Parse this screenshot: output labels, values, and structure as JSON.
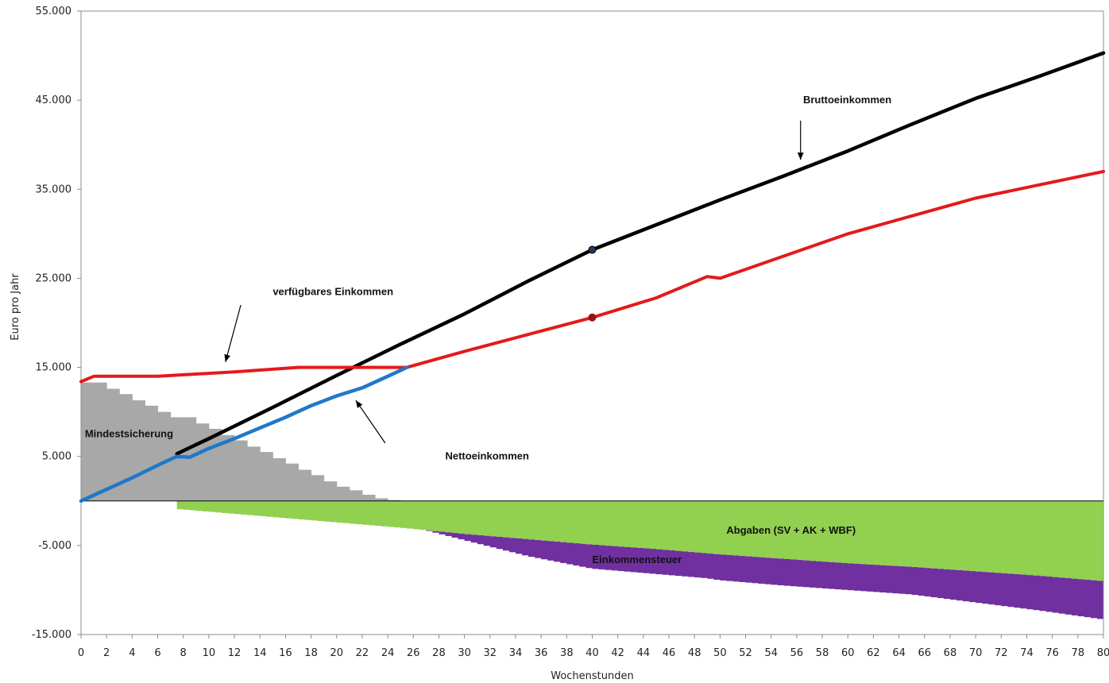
{
  "chart_data": {
    "type": "area",
    "xlabel": "Wochenstunden",
    "ylabel": "Euro pro Jahr",
    "xlim": [
      0,
      80
    ],
    "ylim": [
      -15000,
      55000
    ],
    "x_ticks": [
      0,
      2,
      4,
      6,
      8,
      10,
      12,
      14,
      16,
      18,
      20,
      22,
      24,
      26,
      28,
      30,
      32,
      34,
      36,
      38,
      40,
      42,
      44,
      46,
      48,
      50,
      52,
      54,
      56,
      58,
      60,
      62,
      64,
      66,
      68,
      70,
      72,
      74,
      76,
      78,
      80
    ],
    "y_ticks": [
      -15000,
      -5000,
      5000,
      15000,
      25000,
      35000,
      45000,
      55000
    ],
    "y_tick_labels": [
      "-15.000",
      "-5.000",
      "5.000",
      "15.000",
      "25.000",
      "35.000",
      "45.000",
      "55.000"
    ],
    "grid": false,
    "series": [
      {
        "name": "Bruttoeinkommen",
        "kind": "line",
        "color": "#000000",
        "x": [
          7.5,
          10,
          15,
          20,
          25,
          30,
          35,
          40,
          45,
          50,
          55,
          60,
          65,
          70,
          75,
          80
        ],
        "y": [
          5300,
          7000,
          10500,
          14100,
          17600,
          21000,
          24700,
          28200,
          31000,
          33800,
          36500,
          39300,
          42300,
          45200,
          47700,
          50300
        ]
      },
      {
        "name": "Nettoeinkommen",
        "kind": "line",
        "color": "#1f78c8",
        "x": [
          0,
          2,
          4,
          6,
          7.5,
          8.5,
          10,
          12,
          14,
          16,
          18,
          20,
          22,
          24,
          25.5
        ],
        "y": [
          0,
          1300,
          2600,
          4000,
          5000,
          4900,
          5900,
          7000,
          8200,
          9400,
          10700,
          11800,
          12700,
          14000,
          15000
        ]
      },
      {
        "name": "verfügbares Einkommen",
        "kind": "line",
        "color": "#e31a1c",
        "x": [
          0,
          1,
          6,
          12,
          17,
          20,
          25.5,
          30,
          35,
          40,
          45,
          49,
          50,
          55,
          60,
          65,
          70,
          75,
          80
        ],
        "y": [
          13400,
          14000,
          14000,
          14500,
          15000,
          15000,
          15000,
          16800,
          18700,
          20600,
          22800,
          25200,
          25000,
          27500,
          30000,
          32000,
          34000,
          35500,
          37000
        ]
      },
      {
        "name": "Mindestsicherung",
        "kind": "area",
        "color": "#a8a8a8",
        "x": [
          0,
          1,
          2,
          3,
          4,
          5,
          6,
          7,
          8,
          9,
          10,
          11,
          12,
          13,
          14,
          15,
          16,
          17,
          18,
          19,
          20,
          21,
          22,
          23,
          24,
          25
        ],
        "y": [
          13300,
          13300,
          12600,
          12000,
          11300,
          10700,
          10000,
          9400,
          9400,
          8700,
          8100,
          7400,
          6800,
          6100,
          5500,
          4800,
          4200,
          3500,
          2900,
          2200,
          1600,
          1200,
          700,
          300,
          100,
          0
        ]
      },
      {
        "name": "Abgaben (SV + AK + WBF)",
        "kind": "area",
        "color": "#92d050",
        "x": [
          7.5,
          10,
          15,
          20,
          25,
          30,
          35,
          40,
          45,
          50,
          55,
          60,
          65,
          70,
          75,
          80
        ],
        "y": [
          -900,
          -1200,
          -1800,
          -2400,
          -3000,
          -3700,
          -4300,
          -4900,
          -5400,
          -6000,
          -6500,
          -7000,
          -7400,
          -7900,
          -8400,
          -9000
        ]
      },
      {
        "name": "Einkommensteuer",
        "kind": "area",
        "color": "#7030a0",
        "x": [
          27,
          30,
          35,
          40,
          45,
          49,
          50,
          55,
          60,
          65,
          70,
          75,
          80
        ],
        "y": [
          0,
          -700,
          -1900,
          -2700,
          -2800,
          -2800,
          -2900,
          -3000,
          -3000,
          -3100,
          -3500,
          -3900,
          -4300
        ]
      }
    ],
    "annotations": [
      {
        "text": "Bruttoeinkommen",
        "x": 56.5,
        "y": 45000
      },
      {
        "text": "verfügbares Einkommen",
        "x": 15,
        "y": 23500
      },
      {
        "text": "Nettoeinkommen",
        "x": 28.5,
        "y": 5000
      },
      {
        "text": "Mindestsicherung",
        "x": 0.3,
        "y": 7500
      },
      {
        "text": "Abgaben (SV + AK + WBF)",
        "x": 50.5,
        "y": -3300
      },
      {
        "text": "Einkommensteuer",
        "x": 40,
        "y": -6600
      }
    ]
  }
}
